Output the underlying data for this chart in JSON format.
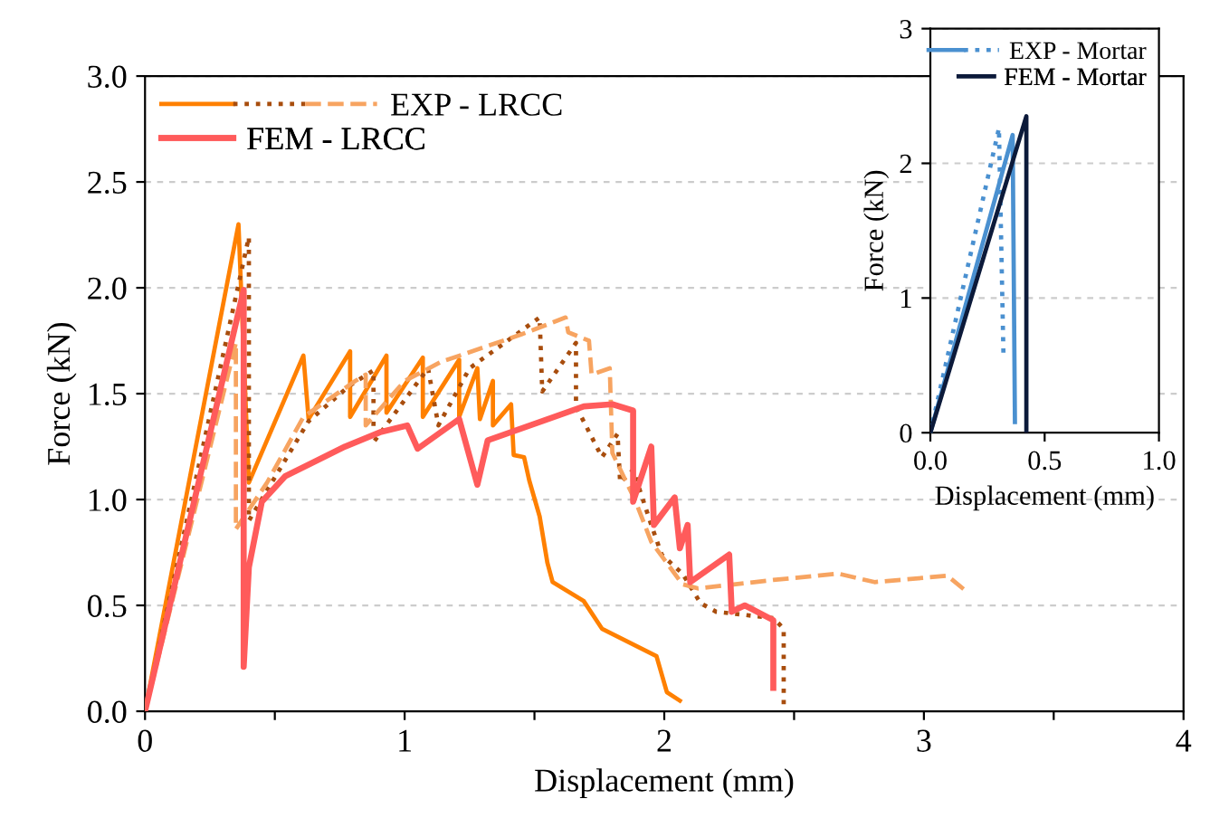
{
  "chart_data": [
    {
      "type": "line",
      "xlabel": "Displacement (mm)",
      "ylabel": "Force (kN)",
      "xlim": [
        0,
        4
      ],
      "xticks": [
        0,
        {
          "value": 0.5,
          "label": null
        },
        1,
        {
          "value": 1.5,
          "label": null
        },
        2,
        {
          "value": 2.5,
          "label": null
        },
        3,
        {
          "value": 3.5,
          "label": null
        },
        4
      ],
      "ylim": [
        0,
        3.0
      ],
      "yticks": [
        {
          "value": 0,
          "label": "0.0"
        },
        0.5,
        {
          "value": 1,
          "label": "1.0"
        },
        1.5,
        {
          "value": 2,
          "label": "2.0"
        },
        2.5,
        {
          "value": 3,
          "label": "3.0"
        }
      ],
      "grid": "y",
      "legend": "top left",
      "series": [
        {
          "color": "#ff8000",
          "line_style": "solid",
          "x": [
            0,
            0.36,
            0.4,
            0.61,
            0.63,
            0.79,
            0.79,
            0.93,
            0.93,
            1.07,
            1.07,
            1.21,
            1.21,
            1.28,
            1.29,
            1.34,
            1.34,
            1.41,
            1.42,
            1.46,
            1.48,
            1.52,
            1.55,
            1.57,
            1.69,
            1.76,
            1.97,
            2.01,
            2.06
          ],
          "values": [
            0,
            2.3,
            1.08,
            1.68,
            1.38,
            1.7,
            1.39,
            1.68,
            1.41,
            1.67,
            1.39,
            1.66,
            1.39,
            1.62,
            1.38,
            1.56,
            1.35,
            1.45,
            1.21,
            1.2,
            1.09,
            0.92,
            0.7,
            0.61,
            0.52,
            0.39,
            0.26,
            0.09,
            0.05
          ]
        },
        {
          "color": "#a84d0d",
          "line_style": "dotted",
          "x": [
            0,
            0.4,
            0.4,
            0.63,
            0.79,
            0.88,
            0.88,
            1.09,
            1.13,
            1.25,
            1.52,
            1.53,
            1.66,
            1.66,
            1.76,
            1.82,
            1.83,
            1.88,
            1.95,
            1.99,
            2.07,
            2.14,
            2.2,
            2.42,
            2.46,
            2.46
          ],
          "values": [
            0,
            2.24,
            0.9,
            1.37,
            1.54,
            1.61,
            1.27,
            1.62,
            1.35,
            1.62,
            1.86,
            1.51,
            1.74,
            1.44,
            1.2,
            1.31,
            1.08,
            1.14,
            0.88,
            0.74,
            0.65,
            0.51,
            0.47,
            0.44,
            0.39,
            0.03
          ]
        },
        {
          "name": "EXP - LRCC",
          "color": "#f7a461",
          "line_style": "dashed",
          "x": [
            0,
            0.35,
            0.35,
            0.47,
            0.61,
            0.81,
            0.85,
            0.85,
            1.0,
            1.14,
            1.45,
            1.62,
            1.63,
            1.71,
            1.72,
            1.79,
            1.8,
            1.89,
            1.95,
            2.07,
            2.13,
            2.42,
            2.67,
            2.81,
            3.09,
            3.16
          ],
          "values": [
            0,
            1.74,
            0.86,
            1.08,
            1.39,
            1.56,
            1.59,
            1.35,
            1.56,
            1.65,
            1.78,
            1.86,
            1.79,
            1.75,
            1.59,
            1.62,
            1.22,
            0.99,
            0.8,
            0.6,
            0.58,
            0.62,
            0.65,
            0.61,
            0.64,
            0.57
          ]
        },
        {
          "name": "FEM - LRCC",
          "color": "#ff5b5b",
          "line_style": "solid",
          "x": [
            0,
            0.38,
            0.38,
            0.4,
            0.45,
            0.54,
            0.77,
            0.91,
            1.01,
            1.05,
            1.21,
            1.28,
            1.32,
            1.53,
            1.69,
            1.8,
            1.88,
            1.88,
            1.95,
            1.96,
            2.04,
            2.06,
            2.09,
            2.1,
            2.25,
            2.26,
            2.31,
            2.42,
            2.42
          ],
          "values": [
            0,
            1.99,
            0.21,
            0.68,
            0.99,
            1.11,
            1.25,
            1.32,
            1.35,
            1.24,
            1.38,
            1.07,
            1.28,
            1.37,
            1.44,
            1.45,
            1.42,
            0.99,
            1.25,
            0.88,
            1.01,
            0.77,
            0.88,
            0.61,
            0.74,
            0.47,
            0.5,
            0.43,
            0.11
          ]
        }
      ]
    },
    {
      "type": "line",
      "xlabel": "Displacement (mm)",
      "ylabel": "Force (kN)",
      "xlim": [
        0,
        1.0
      ],
      "xticks": [
        {
          "value": 0,
          "label": "0.0"
        },
        0.5,
        {
          "value": 1,
          "label": "1.0"
        }
      ],
      "ylim": [
        0,
        3
      ],
      "yticks": [
        0,
        1,
        2,
        3
      ],
      "grid": "y",
      "legend": "top right",
      "series": [
        {
          "color": "#4a90d0",
          "line_style": "solid",
          "x": [
            0,
            0.36,
            0.37
          ],
          "values": [
            0,
            2.21,
            0.08
          ]
        },
        {
          "name": "EXP - Mortar",
          "color": "#4a90d0",
          "line_style": "dotted",
          "x": [
            0,
            0.3,
            0.32
          ],
          "values": [
            0,
            2.26,
            0.56
          ]
        },
        {
          "name": "FEM - Mortar",
          "color": "#0c1a3a",
          "line_style": "solid",
          "x": [
            0,
            0.42,
            0.42
          ],
          "values": [
            0,
            2.35,
            0.0
          ]
        }
      ]
    }
  ]
}
